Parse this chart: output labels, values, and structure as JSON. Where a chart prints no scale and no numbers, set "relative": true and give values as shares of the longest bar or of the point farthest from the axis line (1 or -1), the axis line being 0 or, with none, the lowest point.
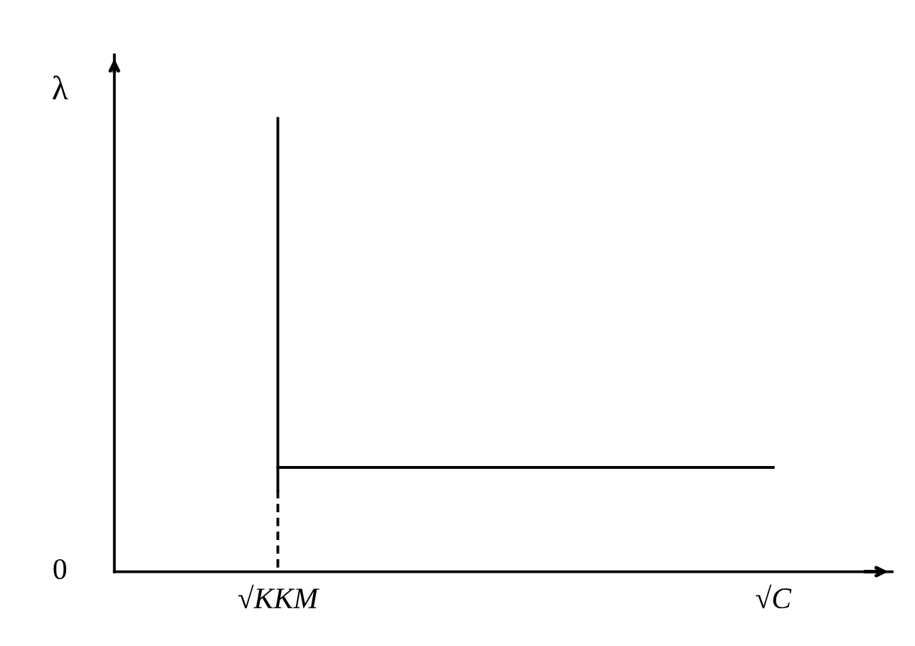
{
  "chart_data": {
    "type": "line",
    "relative": true,
    "ylabel": "λ",
    "annotations": [
      "0"
    ],
    "categories": [
      "√KKM",
      "√C"
    ],
    "series": [
      {
        "color": "#000000",
        "x": [
          "√KKM",
          "√KKM"
        ],
        "values": [
          1,
          0.18
        ]
      },
      {
        "color": "#000000",
        "x": [
          "√KKM",
          "√C"
        ],
        "values": [
          0.23,
          0.23
        ]
      },
      {
        "color": "#000000",
        "x": [
          "√KKM",
          "√KKM"
        ],
        "values": [
          0.18,
          0
        ],
        "line_style": "dashed"
      }
    ]
  }
}
